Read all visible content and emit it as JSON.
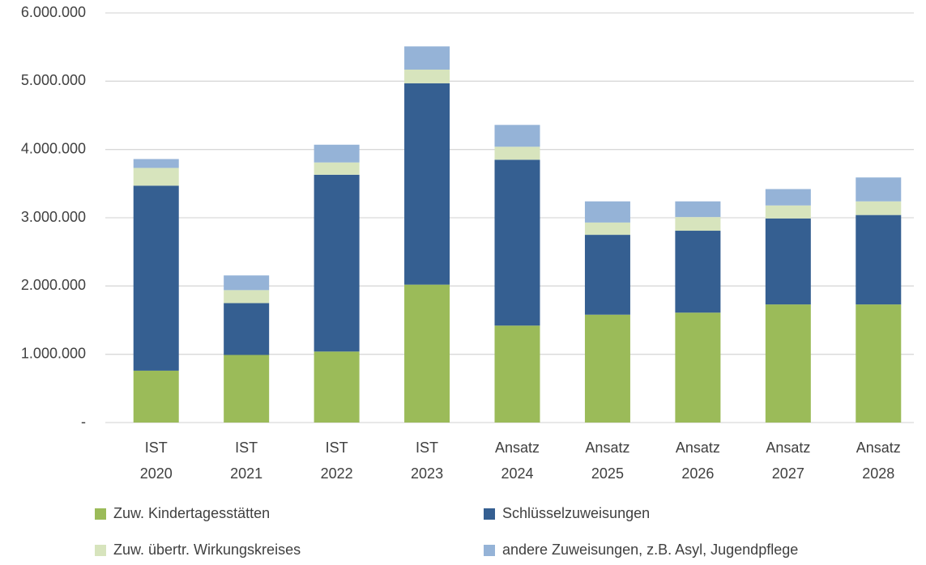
{
  "chart_data": {
    "type": "stacked_bar",
    "categories": [
      "IST 2020",
      "IST 2021",
      "IST 2022",
      "IST 2023",
      "Ansatz 2024",
      "Ansatz 2025",
      "Ansatz 2026",
      "Ansatz 2027",
      "Ansatz 2028"
    ],
    "series": [
      {
        "name": "Zuw. Kindertagesstätten",
        "color": "#9bbb59",
        "values": [
          760000,
          990000,
          1040000,
          2020000,
          1420000,
          1580000,
          1610000,
          1730000,
          1730000
        ]
      },
      {
        "name": "Schlüsselzuweisungen",
        "color": "#355f91",
        "values": [
          2710000,
          760000,
          2590000,
          2950000,
          2430000,
          1170000,
          1200000,
          1260000,
          1310000
        ]
      },
      {
        "name": "Zuw. übertr. Wirkungskreises",
        "color": "#d7e4bd",
        "values": [
          260000,
          190000,
          180000,
          200000,
          190000,
          180000,
          200000,
          190000,
          200000
        ]
      },
      {
        "name": "andere Zuweisungen, z.B. Asyl, Jugendpflege",
        "color": "#95b3d7",
        "values": [
          130000,
          215000,
          260000,
          340000,
          320000,
          310000,
          230000,
          240000,
          350000
        ]
      }
    ],
    "ylim": [
      0,
      6000000
    ],
    "yticks": [
      {
        "value": 0,
        "label": "-"
      },
      {
        "value": 1000000,
        "label": "1.000.000"
      },
      {
        "value": 2000000,
        "label": "2.000.000"
      },
      {
        "value": 3000000,
        "label": "3.000.000"
      },
      {
        "value": 4000000,
        "label": "4.000.000"
      },
      {
        "value": 5000000,
        "label": "5.000.000"
      },
      {
        "value": 6000000,
        "label": "6.000.000"
      }
    ],
    "grid": true
  }
}
